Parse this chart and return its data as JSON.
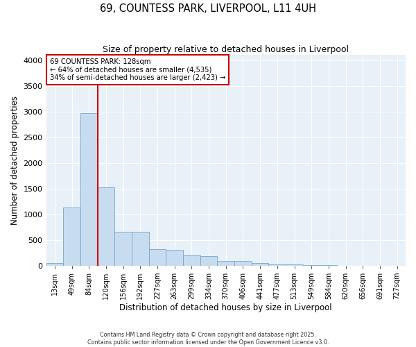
{
  "title_line1": "69, COUNTESS PARK, LIVERPOOL, L11 4UH",
  "title_line2": "Size of property relative to detached houses in Liverpool",
  "xlabel": "Distribution of detached houses by size in Liverpool",
  "ylabel": "Number of detached properties",
  "categories": [
    "13sqm",
    "49sqm",
    "84sqm",
    "120sqm",
    "156sqm",
    "192sqm",
    "227sqm",
    "263sqm",
    "299sqm",
    "334sqm",
    "370sqm",
    "406sqm",
    "441sqm",
    "477sqm",
    "513sqm",
    "549sqm",
    "584sqm",
    "620sqm",
    "656sqm",
    "691sqm",
    "727sqm"
  ],
  "values": [
    50,
    1130,
    2970,
    1530,
    660,
    660,
    320,
    315,
    195,
    185,
    100,
    95,
    55,
    30,
    20,
    15,
    10,
    5,
    5,
    3,
    3
  ],
  "bar_color": "#c8dcf0",
  "bar_edge_color": "#6fa8d0",
  "vline_x_index": 2.5,
  "vline_color": "#cc0000",
  "annotation_line1": "69 COUNTESS PARK: 128sqm",
  "annotation_line2": "← 64% of detached houses are smaller (4,535)",
  "annotation_line3": "34% of semi-detached houses are larger (2,423) →",
  "annotation_box_color": "#cc0000",
  "ylim": [
    0,
    4100
  ],
  "yticks": [
    0,
    500,
    1000,
    1500,
    2000,
    2500,
    3000,
    3500,
    4000
  ],
  "background_color": "#ffffff",
  "plot_bg_color": "#e8f0f8",
  "grid_color": "#ffffff",
  "footer_line1": "Contains HM Land Registry data © Crown copyright and database right 2025.",
  "footer_line2": "Contains public sector information licensed under the Open Government Licence v3.0."
}
